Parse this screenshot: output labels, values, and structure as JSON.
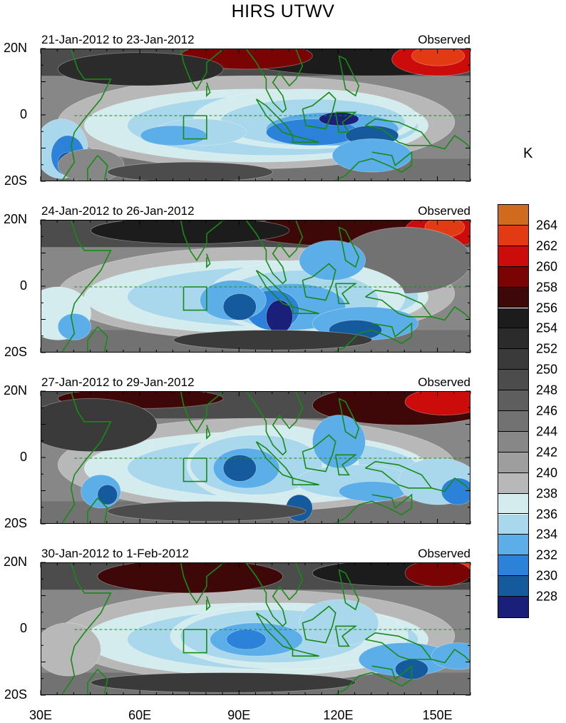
{
  "title": "HIRS UTWV",
  "colorbar": {
    "unit": "K",
    "levels": [
      "264",
      "262",
      "260",
      "258",
      "256",
      "254",
      "252",
      "250",
      "248",
      "246",
      "244",
      "242",
      "240",
      "238",
      "236",
      "234",
      "232",
      "230",
      "228"
    ],
    "colors": [
      "#d06a1e",
      "#e23b14",
      "#cc0b0b",
      "#7a0303",
      "#3e0808",
      "#1c1c1c",
      "#2b2b2b",
      "#3a3a3a",
      "#4c4c4c",
      "#5e5e5e",
      "#727272",
      "#878787",
      "#9e9e9e",
      "#b8b8b8",
      "#d4ecee",
      "#a9d7ec",
      "#5caee8",
      "#2b82d8",
      "#165a9e",
      "#1a1f7a"
    ]
  },
  "chart_data": {
    "type": "contour-map",
    "title": "HIRS UTWV",
    "colorbar_unit": "K",
    "colorbar_levels": [
      264,
      262,
      260,
      258,
      256,
      254,
      252,
      250,
      248,
      246,
      244,
      242,
      240,
      238,
      236,
      234,
      232,
      230,
      228
    ],
    "lon_ticks": [
      "30E",
      "60E",
      "90E",
      "120E",
      "150E"
    ],
    "lon_tick_values": [
      30,
      60,
      90,
      120,
      150
    ],
    "lon_range": [
      30,
      160
    ],
    "lat_ticks": [
      "20N",
      "0",
      "20S"
    ],
    "lat_tick_values": [
      20,
      0,
      -20
    ],
    "lat_range": [
      -20,
      20
    ],
    "panels": [
      {
        "left_label": "21-Jan-2012 to 23-Jan-2012",
        "right_label": "Observed"
      },
      {
        "left_label": "24-Jan-2012 to 26-Jan-2012",
        "right_label": "Observed"
      },
      {
        "left_label": "27-Jan-2012 to 29-Jan-2012",
        "right_label": "Observed"
      },
      {
        "left_label": "30-Jan-2012 to 1-Feb-2012",
        "right_label": "Observed"
      }
    ]
  }
}
